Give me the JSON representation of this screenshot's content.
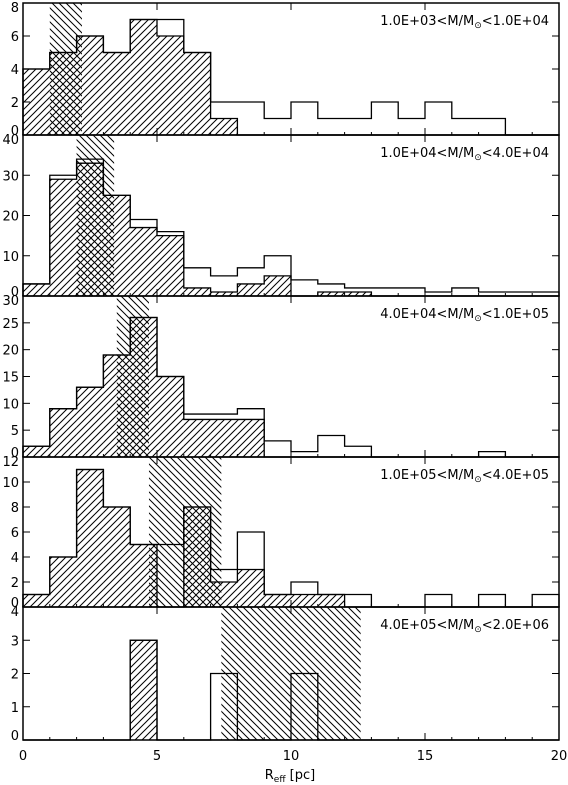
{
  "chart_data": [
    {
      "type": "bar",
      "title_parts": [
        "1.0E+03<M/M",
        "⊙",
        "<1.0E+04"
      ],
      "ylim": [
        0,
        8
      ],
      "yticks": [
        0,
        2,
        4,
        6,
        8
      ],
      "bin_width": 1,
      "all_counts": [
        4,
        5,
        6,
        5,
        7,
        7,
        5,
        2,
        2,
        1,
        2,
        1,
        1,
        2,
        1,
        2,
        1,
        1,
        0,
        0
      ],
      "hatched_counts": [
        4,
        5,
        6,
        5,
        7,
        6,
        5,
        1,
        0,
        0,
        0,
        0,
        0,
        0,
        0,
        0,
        0,
        0,
        0,
        0
      ],
      "median_band": [
        1.0,
        2.2
      ]
    },
    {
      "type": "bar",
      "title_parts": [
        "1.0E+04<M/M",
        "⊙",
        "<4.0E+04"
      ],
      "ylim": [
        0,
        40
      ],
      "yticks": [
        0,
        10,
        20,
        30,
        40
      ],
      "bin_width": 1,
      "all_counts": [
        3,
        30,
        34,
        25,
        19,
        16,
        7,
        5,
        7,
        10,
        4,
        3,
        2,
        2,
        2,
        1,
        2,
        1,
        1,
        1
      ],
      "hatched_counts": [
        3,
        29,
        33,
        25,
        17,
        15,
        2,
        1,
        3,
        5,
        0,
        1,
        1,
        0,
        0,
        0,
        0,
        0,
        0,
        0
      ],
      "median_band": [
        2.0,
        3.4
      ]
    },
    {
      "type": "bar",
      "title_parts": [
        "4.0E+04<M/M",
        "⊙",
        "<1.0E+05"
      ],
      "ylim": [
        0,
        30
      ],
      "yticks": [
        0,
        5,
        10,
        15,
        20,
        25,
        30
      ],
      "bin_width": 1,
      "all_counts": [
        2,
        9,
        13,
        19,
        26,
        15,
        8,
        8,
        9,
        3,
        1,
        4,
        2,
        0,
        0,
        0,
        0,
        1,
        0,
        0
      ],
      "hatched_counts": [
        2,
        9,
        13,
        19,
        26,
        15,
        7,
        7,
        7,
        0,
        0,
        0,
        0,
        0,
        0,
        0,
        0,
        0,
        0,
        0
      ],
      "median_band": [
        3.5,
        4.7
      ]
    },
    {
      "type": "bar",
      "title_parts": [
        "1.0E+05<M/M",
        "⊙",
        "<4.0E+05"
      ],
      "ylim": [
        0,
        12
      ],
      "yticks": [
        0,
        2,
        4,
        6,
        8,
        10,
        12
      ],
      "bin_width": 1,
      "all_counts": [
        1,
        4,
        11,
        8,
        5,
        5,
        8,
        3,
        6,
        1,
        2,
        1,
        1,
        0,
        0,
        1,
        0,
        1,
        0,
        1
      ],
      "hatched_counts": [
        1,
        4,
        11,
        8,
        5,
        0,
        8,
        2,
        3,
        1,
        1,
        1,
        0,
        0,
        0,
        0,
        0,
        0,
        0,
        0
      ],
      "median_band": [
        4.7,
        7.4
      ]
    },
    {
      "type": "bar",
      "title_parts": [
        "4.0E+05<M/M",
        "⊙",
        "<2.0E+06"
      ],
      "ylim": [
        0,
        4
      ],
      "yticks": [
        0,
        1,
        2,
        3,
        4
      ],
      "bin_width": 1,
      "all_counts": [
        0,
        0,
        0,
        0,
        3,
        0,
        0,
        2,
        0,
        0,
        2,
        0,
        0,
        0,
        0,
        0,
        0,
        0,
        0,
        0
      ],
      "hatched_counts": [
        0,
        0,
        0,
        0,
        3,
        0,
        0,
        0,
        0,
        0,
        0,
        0,
        0,
        0,
        0,
        0,
        0,
        0,
        0,
        0
      ],
      "median_band": [
        7.4,
        12.6
      ]
    }
  ],
  "x_axis": {
    "xlim": [
      0,
      20
    ],
    "ticks": [
      0,
      5,
      10,
      15,
      20
    ],
    "label_main": "R",
    "label_sub": "eff",
    "label_unit": " [pc]"
  }
}
